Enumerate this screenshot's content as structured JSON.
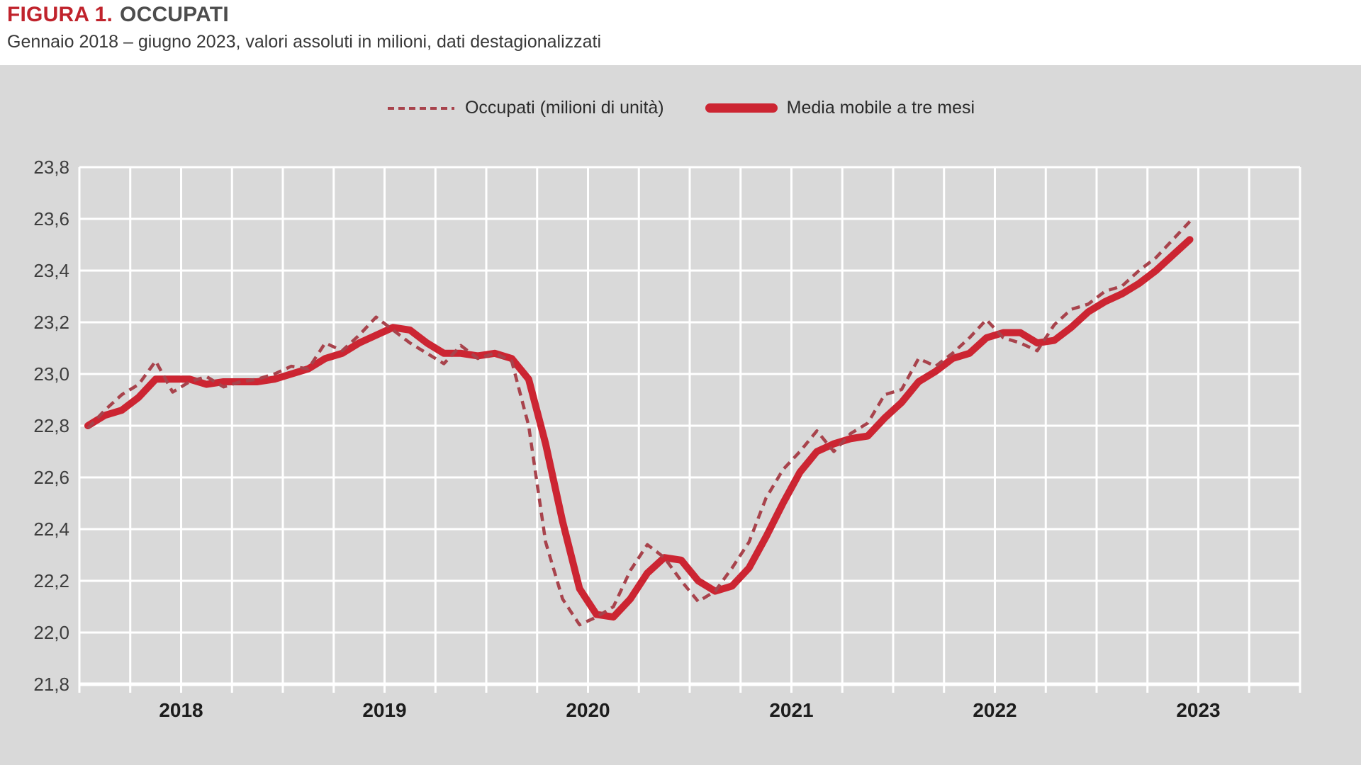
{
  "header": {
    "figure_label": "FIGURA 1.",
    "figure_title": "OCCUPATI",
    "subtitle": "Gennaio 2018 – giugno 2023, valori assoluti in milioni, dati destagionalizzati"
  },
  "legend": [
    {
      "label": "Occupati (milioni di unità)",
      "style": "dashed",
      "color": "#a8434c"
    },
    {
      "label": "Media mobile a tre mesi",
      "style": "solid",
      "color": "#cc2532"
    }
  ],
  "colors": {
    "panel_background": "#d9d9d9",
    "gridline": "#ffffff",
    "axis_labels": "#3d3d3d",
    "year_labels": "#1c1c1c",
    "title_accent": "#c0232c"
  },
  "chart_data": {
    "type": "line",
    "title": "",
    "xlabel": "",
    "ylabel": "",
    "ylim": [
      21.8,
      23.8
    ],
    "y_tick_step": 0.2,
    "y_tick_labels": [
      "23,8",
      "23,6",
      "23,4",
      "23,2",
      "23,0",
      "22,8",
      "22,6",
      "22,4",
      "22,2",
      "22,0",
      "21,8"
    ],
    "x_year_labels": [
      "2018",
      "2019",
      "2020",
      "2021",
      "2022",
      "2023"
    ],
    "x_domain": [
      "2018-01",
      "2024-01"
    ],
    "grid": {
      "vertical": "quarterly",
      "horizontal_step": 0.2,
      "color": "#ffffff"
    },
    "legend_position": "top-center",
    "x": [
      "2018-01",
      "2018-02",
      "2018-03",
      "2018-04",
      "2018-05",
      "2018-06",
      "2018-07",
      "2018-08",
      "2018-09",
      "2018-10",
      "2018-11",
      "2018-12",
      "2019-01",
      "2019-02",
      "2019-03",
      "2019-04",
      "2019-05",
      "2019-06",
      "2019-07",
      "2019-08",
      "2019-09",
      "2019-10",
      "2019-11",
      "2019-12",
      "2020-01",
      "2020-02",
      "2020-03",
      "2020-04",
      "2020-05",
      "2020-06",
      "2020-07",
      "2020-08",
      "2020-09",
      "2020-10",
      "2020-11",
      "2020-12",
      "2021-01",
      "2021-02",
      "2021-03",
      "2021-04",
      "2021-05",
      "2021-06",
      "2021-07",
      "2021-08",
      "2021-09",
      "2021-10",
      "2021-11",
      "2021-12",
      "2022-01",
      "2022-02",
      "2022-03",
      "2022-04",
      "2022-05",
      "2022-06",
      "2022-07",
      "2022-08",
      "2022-09",
      "2022-10",
      "2022-11",
      "2022-12",
      "2023-01",
      "2023-02",
      "2023-03",
      "2023-04",
      "2023-05",
      "2023-06"
    ],
    "series": [
      {
        "name": "Occupati (milioni di unità)",
        "style": "dashed",
        "color": "#a8434c",
        "values": [
          22.79,
          22.86,
          22.92,
          22.96,
          23.05,
          22.93,
          22.97,
          22.99,
          22.95,
          22.97,
          22.98,
          23.0,
          23.03,
          23.02,
          23.12,
          23.09,
          23.15,
          23.22,
          23.17,
          23.12,
          23.08,
          23.04,
          23.11,
          23.06,
          23.08,
          23.05,
          22.8,
          22.35,
          22.13,
          22.03,
          22.06,
          22.1,
          22.24,
          22.34,
          22.29,
          22.2,
          22.12,
          22.16,
          22.25,
          22.35,
          22.52,
          22.63,
          22.7,
          22.78,
          22.7,
          22.77,
          22.81,
          22.92,
          22.94,
          23.06,
          23.03,
          23.08,
          23.14,
          23.21,
          23.14,
          23.12,
          23.09,
          23.19,
          23.25,
          23.27,
          23.32,
          23.34,
          23.4,
          23.45,
          23.52,
          23.59
        ]
      },
      {
        "name": "Media mobile a tre mesi",
        "style": "solid",
        "color": "#cc2532",
        "values": [
          22.8,
          22.84,
          22.86,
          22.91,
          22.98,
          22.98,
          22.98,
          22.96,
          22.97,
          22.97,
          22.97,
          22.98,
          23.0,
          23.02,
          23.06,
          23.08,
          23.12,
          23.15,
          23.18,
          23.17,
          23.12,
          23.08,
          23.08,
          23.07,
          23.08,
          23.06,
          22.98,
          22.73,
          22.43,
          22.17,
          22.07,
          22.06,
          22.13,
          22.23,
          22.29,
          22.28,
          22.2,
          22.16,
          22.18,
          22.25,
          22.37,
          22.5,
          22.62,
          22.7,
          22.73,
          22.75,
          22.76,
          22.83,
          22.89,
          22.97,
          23.01,
          23.06,
          23.08,
          23.14,
          23.16,
          23.16,
          23.12,
          23.13,
          23.18,
          23.24,
          23.28,
          23.31,
          23.35,
          23.4,
          23.46,
          23.52
        ]
      }
    ]
  }
}
